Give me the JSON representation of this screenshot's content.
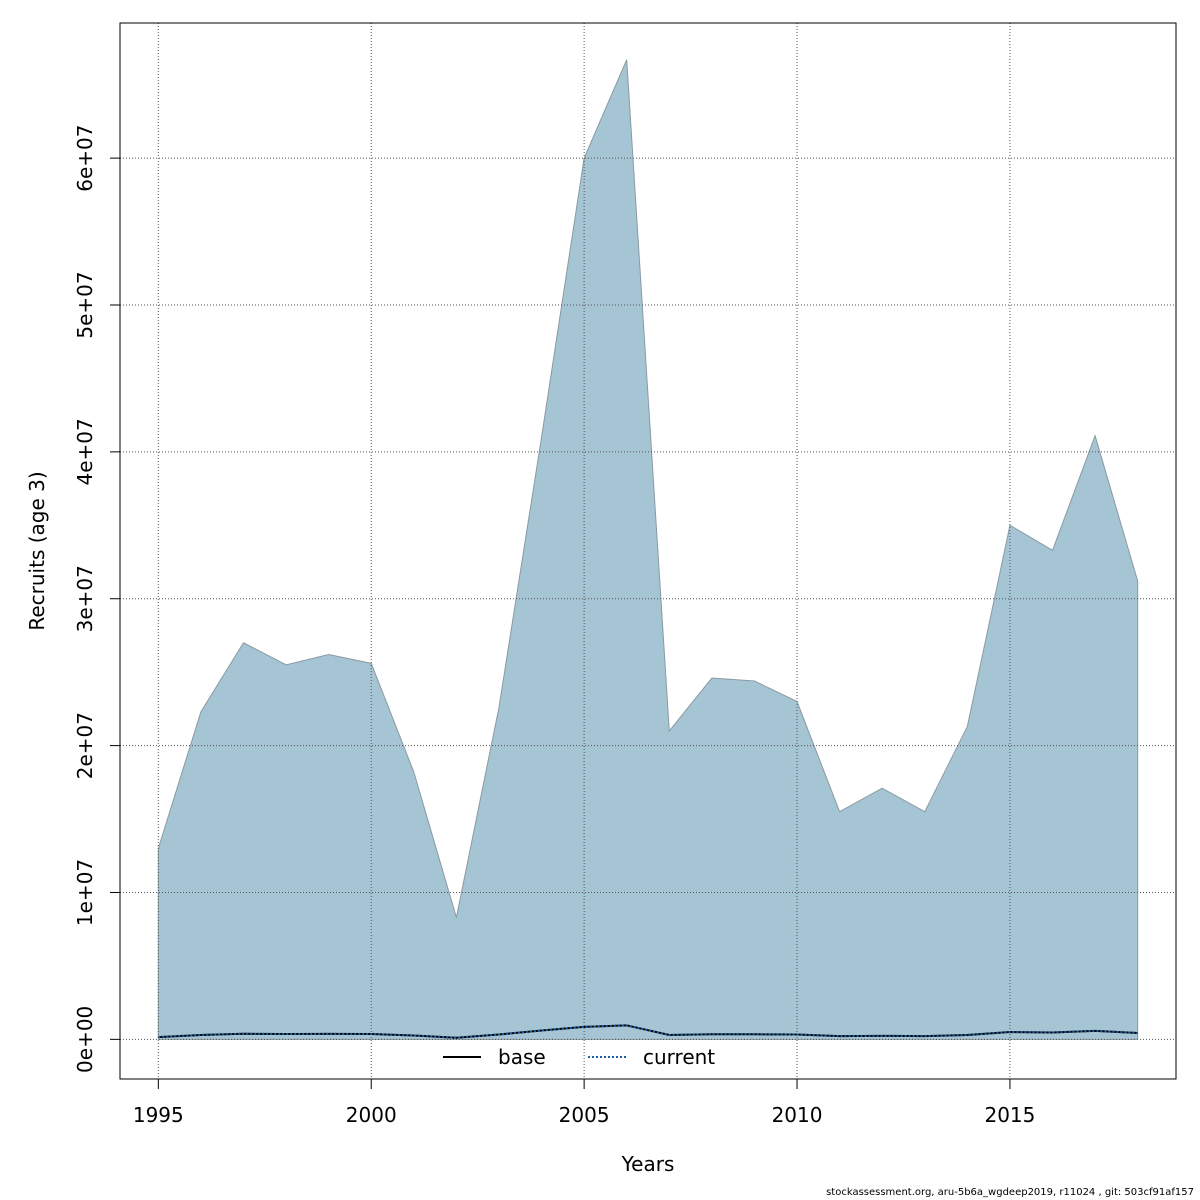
{
  "chart_data": {
    "type": "area",
    "xlabel": "Years",
    "ylabel": "Recruits (age 3)",
    "xlim": [
      1994.1,
      2018.9
    ],
    "ylim": [
      -2700000,
      69200000
    ],
    "x_ticks": [
      1995,
      2000,
      2005,
      2010,
      2015
    ],
    "x_tick_labels": [
      "1995",
      "2000",
      "2005",
      "2010",
      "2015"
    ],
    "y_ticks": [
      0,
      10000000,
      20000000,
      30000000,
      40000000,
      50000000,
      60000000
    ],
    "y_tick_labels": [
      "0e+00",
      "1e+07",
      "2e+07",
      "3e+07",
      "4e+07",
      "5e+07",
      "6e+07"
    ],
    "grid": true,
    "legend_position": "bottom",
    "fill_color": "#a5c4d4",
    "x": [
      1995,
      1996,
      1997,
      1998,
      1999,
      2000,
      2001,
      2002,
      2003,
      2004,
      2005,
      2006,
      2007,
      2008,
      2009,
      2010,
      2011,
      2012,
      2013,
      2014,
      2015,
      2016,
      2017,
      2018
    ],
    "band_upper": [
      13000000,
      22300000,
      27000000,
      25500000,
      26200000,
      25600000,
      18200000,
      8300000,
      22600000,
      41000000,
      60000000,
      66700000,
      21000000,
      24600000,
      24400000,
      23000000,
      15500000,
      17100000,
      15500000,
      21300000,
      35000000,
      33300000,
      41100000,
      31200000
    ],
    "band_lower": [
      0,
      0,
      0,
      0,
      0,
      0,
      0,
      0,
      0,
      0,
      0,
      0,
      0,
      0,
      0,
      0,
      0,
      0,
      0,
      0,
      0,
      0,
      0,
      0
    ],
    "series": [
      {
        "name": "base",
        "color": "#000000",
        "style": "solid",
        "values": [
          150000,
          300000,
          380000,
          360000,
          370000,
          360000,
          260000,
          110000,
          330000,
          600000,
          850000,
          950000,
          300000,
          350000,
          345000,
          330000,
          220000,
          240000,
          220000,
          300000,
          500000,
          470000,
          580000,
          430000
        ]
      },
      {
        "name": "current",
        "color": "#1f5fa0",
        "style": "dashed",
        "values": [
          150000,
          300000,
          380000,
          360000,
          370000,
          360000,
          260000,
          110000,
          330000,
          600000,
          850000,
          950000,
          300000,
          350000,
          345000,
          330000,
          220000,
          240000,
          220000,
          300000,
          500000,
          470000,
          580000,
          430000
        ]
      }
    ]
  },
  "footer": {
    "text": "stockassessment.org, aru-5b6a_wgdeep2019, r11024 , git: 503cf91af157"
  }
}
